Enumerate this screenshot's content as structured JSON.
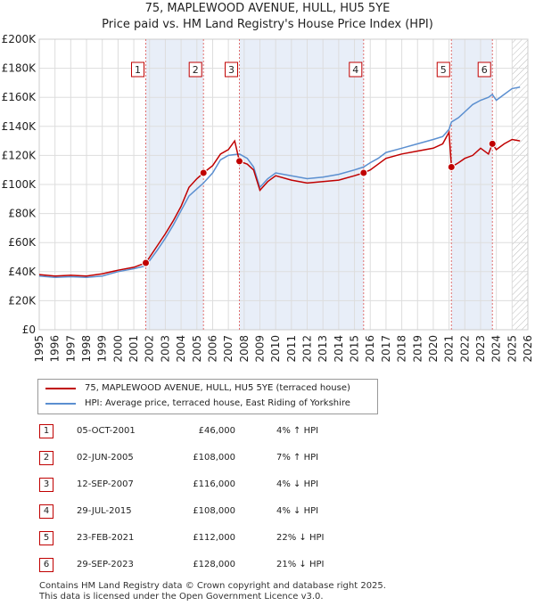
{
  "title": "75, MAPLEWOOD AVENUE, HULL, HU5 5YE",
  "subtitle": "Price paid vs. HM Land Registry's House Price Index (HPI)",
  "chart_data": {
    "type": "line",
    "title": "75, MAPLEWOOD AVENUE, HULL, HU5 5YE",
    "subtitle": "Price paid vs. HM Land Registry's House Price Index (HPI)",
    "xlim": [
      1995,
      2026
    ],
    "ylim": [
      0,
      200000
    ],
    "grid": true,
    "x_ticks": [
      "1995",
      "1996",
      "1997",
      "1998",
      "1999",
      "2000",
      "2001",
      "2002",
      "2003",
      "2004",
      "2005",
      "2006",
      "2007",
      "2008",
      "2009",
      "2010",
      "2011",
      "2012",
      "2013",
      "2014",
      "2015",
      "2016",
      "2017",
      "2018",
      "2019",
      "2020",
      "2021",
      "2022",
      "2023",
      "2024",
      "2025",
      "2026"
    ],
    "y_ticks": [
      {
        "value": 0,
        "label": "£0"
      },
      {
        "value": 20000,
        "label": "£20K"
      },
      {
        "value": 40000,
        "label": "£40K"
      },
      {
        "value": 60000,
        "label": "£60K"
      },
      {
        "value": 80000,
        "label": "£80K"
      },
      {
        "value": 100000,
        "label": "£100K"
      },
      {
        "value": 120000,
        "label": "£120K"
      },
      {
        "value": 140000,
        "label": "£140K"
      },
      {
        "value": 160000,
        "label": "£160K"
      },
      {
        "value": 180000,
        "label": "£180K"
      },
      {
        "value": 200000,
        "label": "£200K"
      }
    ],
    "shaded_ranges": [
      [
        2001.76,
        2005.42
      ],
      [
        2007.7,
        2015.58
      ],
      [
        2021.15,
        2023.75
      ]
    ],
    "future_hatch_from": 2025.0,
    "series": [
      {
        "name": "75, MAPLEWOOD AVENUE, HULL, HU5 5YE (terraced house)",
        "color": "#c00000",
        "points": [
          [
            1995.0,
            38000
          ],
          [
            1996.0,
            37000
          ],
          [
            1997.0,
            37500
          ],
          [
            1998.0,
            37000
          ],
          [
            1999.0,
            38500
          ],
          [
            2000.0,
            41000
          ],
          [
            2001.0,
            43000
          ],
          [
            2001.76,
            46000
          ],
          [
            2002.5,
            58000
          ],
          [
            2003.0,
            66000
          ],
          [
            2003.5,
            75000
          ],
          [
            2004.0,
            85000
          ],
          [
            2004.5,
            98000
          ],
          [
            2005.0,
            104000
          ],
          [
            2005.42,
            108000
          ],
          [
            2006.0,
            113000
          ],
          [
            2006.5,
            121000
          ],
          [
            2007.0,
            124000
          ],
          [
            2007.4,
            130000
          ],
          [
            2007.7,
            116000
          ],
          [
            2008.2,
            114000
          ],
          [
            2008.6,
            110000
          ],
          [
            2009.0,
            96000
          ],
          [
            2009.5,
            102000
          ],
          [
            2010.0,
            106000
          ],
          [
            2011.0,
            103000
          ],
          [
            2012.0,
            101000
          ],
          [
            2013.0,
            102000
          ],
          [
            2014.0,
            103000
          ],
          [
            2015.0,
            106000
          ],
          [
            2015.58,
            108000
          ],
          [
            2016.0,
            110000
          ],
          [
            2016.5,
            114000
          ],
          [
            2017.0,
            118000
          ],
          [
            2018.0,
            121000
          ],
          [
            2019.0,
            123000
          ],
          [
            2020.0,
            125000
          ],
          [
            2020.6,
            128000
          ],
          [
            2021.0,
            136000
          ],
          [
            2021.15,
            112000
          ],
          [
            2021.6,
            115000
          ],
          [
            2022.0,
            118000
          ],
          [
            2022.5,
            120000
          ],
          [
            2023.0,
            125000
          ],
          [
            2023.5,
            121000
          ],
          [
            2023.75,
            128000
          ],
          [
            2024.0,
            124000
          ],
          [
            2024.5,
            128000
          ],
          [
            2025.0,
            131000
          ],
          [
            2025.5,
            130000
          ]
        ]
      },
      {
        "name": "HPI: Average price, terraced house, East Riding of Yorkshire",
        "color": "#5b8fd0",
        "points": [
          [
            1995.0,
            37000
          ],
          [
            1996.0,
            36000
          ],
          [
            1997.0,
            36500
          ],
          [
            1998.0,
            36000
          ],
          [
            1999.0,
            37000
          ],
          [
            2000.0,
            40000
          ],
          [
            2001.0,
            42000
          ],
          [
            2001.76,
            44000
          ],
          [
            2002.5,
            55000
          ],
          [
            2003.0,
            63000
          ],
          [
            2003.5,
            72000
          ],
          [
            2004.0,
            82000
          ],
          [
            2004.5,
            92000
          ],
          [
            2005.0,
            97000
          ],
          [
            2005.42,
            101000
          ],
          [
            2006.0,
            108000
          ],
          [
            2006.5,
            117000
          ],
          [
            2007.0,
            120000
          ],
          [
            2007.7,
            121000
          ],
          [
            2008.2,
            118000
          ],
          [
            2008.6,
            112000
          ],
          [
            2009.0,
            98000
          ],
          [
            2009.5,
            104000
          ],
          [
            2010.0,
            108000
          ],
          [
            2011.0,
            106000
          ],
          [
            2012.0,
            104000
          ],
          [
            2013.0,
            105000
          ],
          [
            2014.0,
            107000
          ],
          [
            2015.0,
            110000
          ],
          [
            2015.58,
            112000
          ],
          [
            2016.0,
            115000
          ],
          [
            2016.5,
            118000
          ],
          [
            2017.0,
            122000
          ],
          [
            2018.0,
            125000
          ],
          [
            2019.0,
            128000
          ],
          [
            2020.0,
            131000
          ],
          [
            2020.6,
            133000
          ],
          [
            2021.0,
            138000
          ],
          [
            2021.15,
            143000
          ],
          [
            2021.6,
            146000
          ],
          [
            2022.0,
            150000
          ],
          [
            2022.5,
            155000
          ],
          [
            2023.0,
            158000
          ],
          [
            2023.5,
            160000
          ],
          [
            2023.75,
            162000
          ],
          [
            2024.0,
            158000
          ],
          [
            2024.5,
            162000
          ],
          [
            2025.0,
            166000
          ],
          [
            2025.5,
            167000
          ]
        ]
      }
    ],
    "markers": [
      {
        "num": "1",
        "x": 2001.76,
        "y": 46000
      },
      {
        "num": "2",
        "x": 2005.42,
        "y": 108000
      },
      {
        "num": "3",
        "x": 2007.7,
        "y": 116000
      },
      {
        "num": "4",
        "x": 2015.58,
        "y": 108000
      },
      {
        "num": "5",
        "x": 2021.15,
        "y": 112000
      },
      {
        "num": "6",
        "x": 2023.75,
        "y": 128000
      }
    ]
  },
  "legend": {
    "property": "75, MAPLEWOOD AVENUE, HULL, HU5 5YE (terraced house)",
    "hpi": "HPI: Average price, terraced house, East Riding of Yorkshire"
  },
  "transactions": [
    {
      "num": "1",
      "date": "05-OCT-2001",
      "price": "£46,000",
      "hpi": "4% ↑ HPI"
    },
    {
      "num": "2",
      "date": "02-JUN-2005",
      "price": "£108,000",
      "hpi": "7% ↑ HPI"
    },
    {
      "num": "3",
      "date": "12-SEP-2007",
      "price": "£116,000",
      "hpi": "4% ↓ HPI"
    },
    {
      "num": "4",
      "date": "29-JUL-2015",
      "price": "£108,000",
      "hpi": "4% ↓ HPI"
    },
    {
      "num": "5",
      "date": "23-FEB-2021",
      "price": "£112,000",
      "hpi": "22% ↓ HPI"
    },
    {
      "num": "6",
      "date": "29-SEP-2023",
      "price": "£128,000",
      "hpi": "21% ↓ HPI"
    }
  ],
  "footer": {
    "line1": "Contains HM Land Registry data © Crown copyright and database right 2025.",
    "line2": "This data is licensed under the Open Government Licence v3.0."
  },
  "colors": {
    "property": "#c00000",
    "hpi": "#5b8fd0",
    "shade": "#e8eef8"
  }
}
